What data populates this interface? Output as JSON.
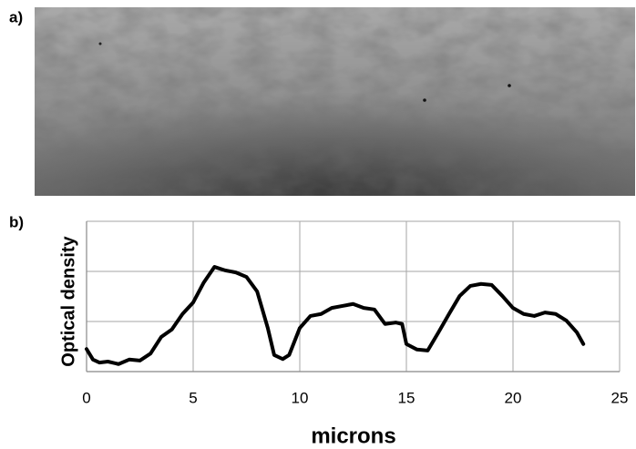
{
  "panel_labels": [
    "a)",
    "b)"
  ],
  "chart_data": {
    "type": "line",
    "ylabel": "Optical density",
    "xlabel": "microns",
    "color": "#000000",
    "grid": true,
    "xlim": [
      0,
      25
    ],
    "xticks": [
      0,
      5,
      10,
      15,
      20,
      25
    ],
    "ylim": [
      0,
      3
    ],
    "yticks": [
      0,
      1,
      2,
      3
    ],
    "x": [
      0,
      0.3,
      0.6,
      1,
      1.5,
      2,
      2.5,
      3,
      3.5,
      4,
      4.5,
      5,
      5.5,
      6,
      6.5,
      7,
      7.5,
      8,
      8.5,
      8.8,
      9.2,
      9.5,
      10,
      10.5,
      11,
      11.5,
      12,
      12.5,
      13,
      13.5,
      14,
      14.5,
      14.8,
      15,
      15.5,
      16,
      16.5,
      17,
      17.5,
      18,
      18.5,
      19,
      19.5,
      20,
      20.5,
      21,
      21.5,
      22,
      22.5,
      23,
      23.3
    ],
    "values": [
      0.45,
      0.24,
      0.18,
      0.2,
      0.15,
      0.24,
      0.22,
      0.36,
      0.69,
      0.84,
      1.15,
      1.38,
      1.78,
      2.09,
      2.02,
      1.98,
      1.89,
      1.6,
      0.87,
      0.33,
      0.25,
      0.33,
      0.87,
      1.11,
      1.15,
      1.27,
      1.31,
      1.35,
      1.27,
      1.24,
      0.95,
      0.98,
      0.95,
      0.55,
      0.44,
      0.42,
      0.78,
      1.15,
      1.51,
      1.71,
      1.75,
      1.73,
      1.51,
      1.27,
      1.15,
      1.11,
      1.18,
      1.15,
      1.02,
      0.78,
      0.55
    ]
  }
}
